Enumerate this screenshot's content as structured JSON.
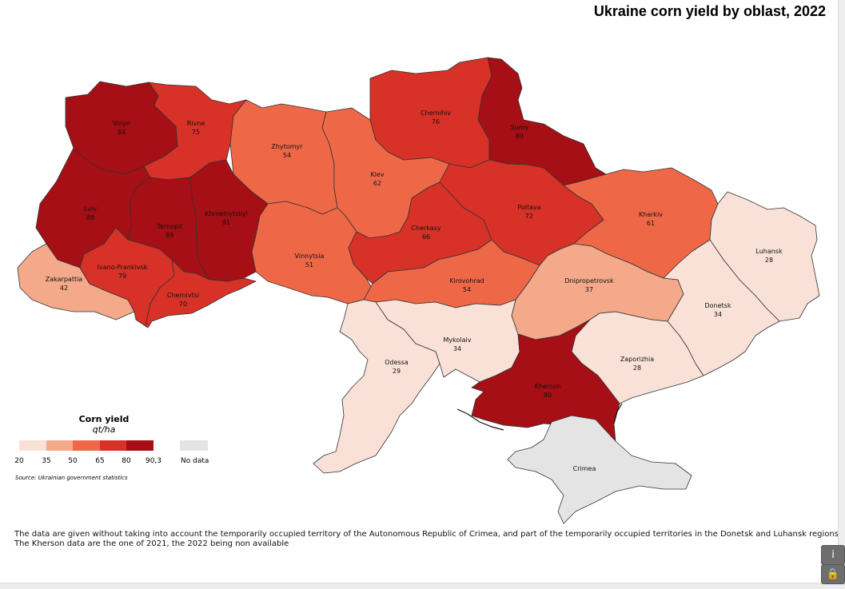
{
  "title": "Ukraine corn yield by oblast, 2022",
  "legend": {
    "title": "Corn yield",
    "unit": "qt/ha",
    "breaks": [
      "20",
      "35",
      "50",
      "65",
      "80",
      "90,3"
    ],
    "colors": [
      "#f9e1d7",
      "#f3a98a",
      "#ee6848",
      "#d83127",
      "#a50f15"
    ],
    "no_data_label": "No data",
    "no_data_color": "#e4e4e4"
  },
  "source": "Source: Ukrainian government statistics",
  "notes": [
    "The data are given without taking into account the temporarily occupied territory of the Autonomous Republic of Crimea, and part of the temporarily occupied territories in the Donetsk and Luhansk regions.",
    "The Kherson data are the one of 2021, the 2022 being non available"
  ],
  "regions": [
    {
      "id": "volyn",
      "name": "Volyn",
      "value": "84",
      "color": "#a50f15"
    },
    {
      "id": "rivne",
      "name": "Rivne",
      "value": "75",
      "color": "#d83127"
    },
    {
      "id": "zhytomyr",
      "name": "Zhytomyr",
      "value": "54",
      "color": "#ee6848"
    },
    {
      "id": "kiev",
      "name": "Kiev",
      "value": "62",
      "color": "#ee6848"
    },
    {
      "id": "chernihiv",
      "name": "Chernihiv",
      "value": "76",
      "color": "#d83127"
    },
    {
      "id": "sumy",
      "name": "Sumy",
      "value": "80",
      "color": "#a50f15"
    },
    {
      "id": "lviv",
      "name": "Lviv",
      "value": "88",
      "color": "#a50f15"
    },
    {
      "id": "ternopil",
      "name": "Ternopil",
      "value": "89",
      "color": "#a50f15"
    },
    {
      "id": "khmelnytskyi",
      "name": "Khmelnytskyi",
      "value": "81",
      "color": "#a50f15"
    },
    {
      "id": "vinnytsia",
      "name": "Vinnytsia",
      "value": "51",
      "color": "#ee6848"
    },
    {
      "id": "cherkasy",
      "name": "Cherkasy",
      "value": "66",
      "color": "#d83127"
    },
    {
      "id": "poltava",
      "name": "Poltava",
      "value": "72",
      "color": "#d83127"
    },
    {
      "id": "kharkiv",
      "name": "Kharkiv",
      "value": "61",
      "color": "#ee6848"
    },
    {
      "id": "luhansk",
      "name": "Luhansk",
      "value": "28",
      "color": "#f9e1d7"
    },
    {
      "id": "zakarpattia",
      "name": "Zakarpattia",
      "value": "42",
      "color": "#f3a98a"
    },
    {
      "id": "ivano-frankivsk",
      "name": "Ivano-Frankivsk",
      "value": "79",
      "color": "#d83127"
    },
    {
      "id": "chernivtsi",
      "name": "Chernivtsi",
      "value": "70",
      "color": "#d83127"
    },
    {
      "id": "kirovohrad",
      "name": "Kirovohrad",
      "value": "54",
      "color": "#ee6848"
    },
    {
      "id": "dnipropetrovsk",
      "name": "Dnipropetrovsk",
      "value": "37",
      "color": "#f3a98a"
    },
    {
      "id": "donetsk",
      "name": "Donetsk",
      "value": "34",
      "color": "#f9e1d7"
    },
    {
      "id": "mykolaiv",
      "name": "Mykolaiv",
      "value": "34",
      "color": "#f9e1d7"
    },
    {
      "id": "odessa",
      "name": "Odessa",
      "value": "29",
      "color": "#f9e1d7"
    },
    {
      "id": "zaporizhia",
      "name": "Zaporizhia",
      "value": "28",
      "color": "#f9e1d7"
    },
    {
      "id": "kherson",
      "name": "Kherson",
      "value": "90",
      "color": "#a50f15"
    },
    {
      "id": "crimea",
      "name": "Crimea",
      "value": "",
      "color": "#e4e4e4"
    }
  ],
  "buttons": {
    "info": "i",
    "lock": "🔒"
  }
}
